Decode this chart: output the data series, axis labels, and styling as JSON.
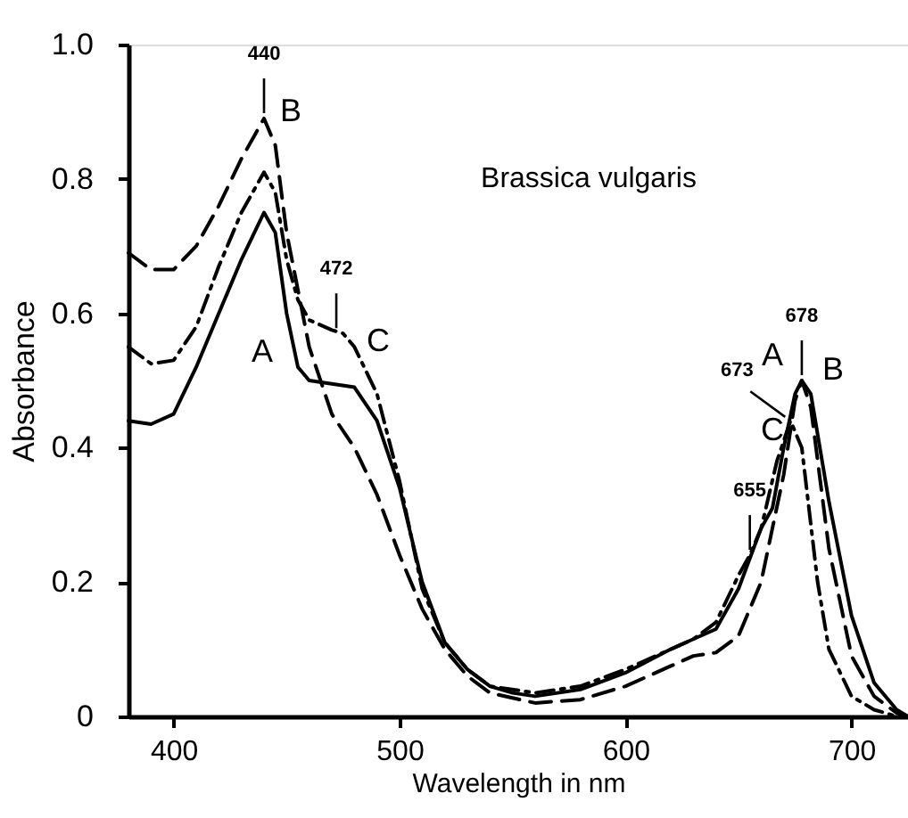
{
  "chart_data": {
    "type": "line",
    "xlabel": "Wavelength in nm",
    "ylabel": "Absorbance",
    "xlim": [
      380,
      725
    ],
    "xticks": [
      400,
      500,
      600,
      700
    ],
    "ylim": [
      0,
      1
    ],
    "yticks": [
      0,
      0.2,
      0.4,
      0.6,
      0.8,
      {
        "value": 1,
        "label": "1.0"
      }
    ],
    "grid": false,
    "marker": "none",
    "series": [
      {
        "color": "#000000",
        "line_style": "solid",
        "x": [
          380,
          390,
          400,
          410,
          420,
          430,
          440,
          445,
          450,
          455,
          460,
          470,
          480,
          490,
          500,
          510,
          520,
          530,
          540,
          550,
          560,
          580,
          600,
          620,
          630,
          640,
          650,
          660,
          665,
          670,
          675,
          678,
          682,
          690,
          700,
          710,
          720,
          725
        ],
        "values": [
          0.44,
          0.435,
          0.45,
          0.52,
          0.6,
          0.68,
          0.75,
          0.72,
          0.6,
          0.52,
          0.5,
          0.495,
          0.49,
          0.44,
          0.34,
          0.2,
          0.11,
          0.07,
          0.045,
          0.035,
          0.03,
          0.04,
          0.065,
          0.1,
          0.115,
          0.13,
          0.19,
          0.28,
          0.31,
          0.4,
          0.48,
          0.5,
          0.48,
          0.32,
          0.15,
          0.05,
          0.01,
          0
        ]
      },
      {
        "color": "#000000",
        "line_style": "dashed",
        "x": [
          380,
          390,
          400,
          410,
          420,
          430,
          440,
          445,
          450,
          460,
          470,
          480,
          490,
          500,
          510,
          520,
          530,
          540,
          560,
          580,
          600,
          620,
          630,
          640,
          650,
          660,
          670,
          675,
          678,
          682,
          690,
          700,
          710,
          720,
          725
        ],
        "values": [
          0.69,
          0.665,
          0.665,
          0.7,
          0.76,
          0.83,
          0.89,
          0.85,
          0.72,
          0.55,
          0.45,
          0.4,
          0.33,
          0.24,
          0.16,
          0.1,
          0.06,
          0.035,
          0.02,
          0.025,
          0.045,
          0.075,
          0.09,
          0.095,
          0.12,
          0.2,
          0.36,
          0.47,
          0.5,
          0.46,
          0.25,
          0.09,
          0.03,
          0.005,
          0
        ]
      },
      {
        "color": "#000000",
        "line_style": "dashdot",
        "x": [
          380,
          390,
          400,
          410,
          420,
          430,
          440,
          445,
          450,
          455,
          460,
          470,
          475,
          480,
          490,
          500,
          510,
          520,
          530,
          540,
          560,
          580,
          600,
          620,
          630,
          640,
          650,
          655,
          660,
          667,
          673,
          678,
          685,
          690,
          700,
          710,
          720
        ],
        "values": [
          0.55,
          0.525,
          0.53,
          0.58,
          0.67,
          0.75,
          0.81,
          0.78,
          0.68,
          0.62,
          0.59,
          0.575,
          0.57,
          0.55,
          0.48,
          0.35,
          0.19,
          0.11,
          0.07,
          0.045,
          0.035,
          0.045,
          0.07,
          0.1,
          0.115,
          0.14,
          0.21,
          0.24,
          0.28,
          0.38,
          0.44,
          0.4,
          0.2,
          0.1,
          0.03,
          0.01,
          0
        ]
      }
    ],
    "annotations": [
      {
        "text": "440",
        "x": 440,
        "y": 0.89
      },
      {
        "text": "472",
        "x": 472,
        "y": 0.57
      },
      {
        "text": "678",
        "x": 678,
        "y": 0.5
      },
      {
        "text": "673",
        "x": 673,
        "y": 0.44
      },
      {
        "text": "655",
        "x": 655,
        "y": 0.24
      },
      "B",
      "A",
      "C",
      "A",
      "B",
      "C",
      "Brassica vulgaris"
    ]
  }
}
